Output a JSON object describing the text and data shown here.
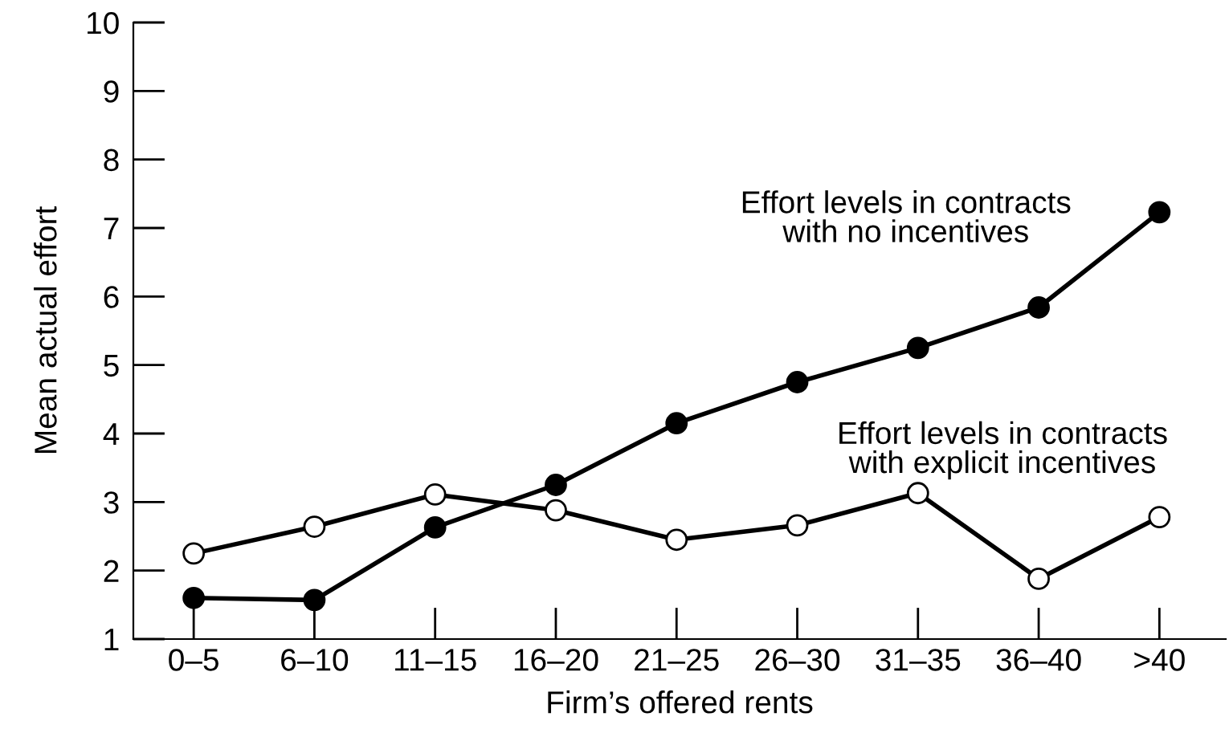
{
  "chart_data": {
    "type": "line",
    "xlabel": "Firm’s offered rents",
    "ylabel": "Mean actual effort",
    "categories": [
      "0–5",
      "6–10",
      "11–15",
      "16–20",
      "21–25",
      "26–30",
      "31–35",
      "36–40",
      ">40"
    ],
    "series": [
      {
        "name": "Effort levels in contracts\nwith no incentives",
        "color": "#000000",
        "values": [
          1.6,
          1.57,
          2.63,
          3.25,
          4.15,
          4.75,
          5.25,
          5.84,
          7.23
        ]
      },
      {
        "name": "Effort levels in contracts\nwith explicit incentives",
        "color": "#000000",
        "values": [
          2.25,
          2.64,
          3.11,
          2.88,
          2.45,
          2.66,
          3.13,
          1.88,
          2.78
        ]
      }
    ],
    "ylim": [
      1,
      10
    ],
    "yticks": [
      1,
      2,
      3,
      4,
      5,
      6,
      7,
      8,
      9,
      10
    ],
    "grid": false,
    "legend": false,
    "marker": "circle",
    "line_style": "solid"
  }
}
